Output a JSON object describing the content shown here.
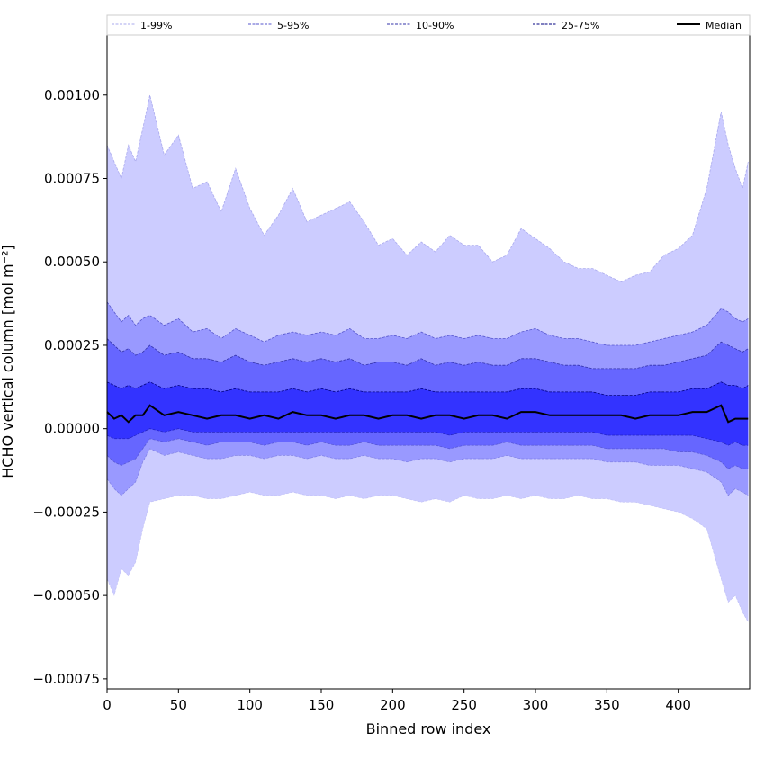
{
  "chart_data": {
    "type": "area",
    "title": "",
    "xlabel": "Binned row index",
    "ylabel": "HCHO vertical column [mol m⁻²]",
    "xlim": [
      0,
      450
    ],
    "ylim": [
      -0.00078,
      0.00118
    ],
    "x_ticks": [
      0,
      50,
      100,
      150,
      200,
      250,
      300,
      350,
      400
    ],
    "x_tick_labels": [
      "0",
      "50",
      "100",
      "150",
      "200",
      "250",
      "300",
      "350",
      "400"
    ],
    "y_ticks": [
      0.001,
      0.00075,
      0.0005,
      0.00025,
      0.0,
      -0.00025,
      -0.0005,
      -0.00075
    ],
    "y_tick_labels": [
      "0.00100",
      "0.00075",
      "0.00050",
      "0.00025",
      "0.00000",
      "−0.00025",
      "−0.00050",
      "−0.00075"
    ],
    "legend_position": "top, spanning full width",
    "x": [
      0,
      5,
      10,
      15,
      20,
      25,
      30,
      40,
      50,
      60,
      70,
      80,
      90,
      100,
      110,
      120,
      130,
      140,
      150,
      160,
      170,
      180,
      190,
      200,
      210,
      220,
      230,
      240,
      250,
      260,
      270,
      280,
      290,
      300,
      310,
      320,
      330,
      340,
      350,
      360,
      370,
      380,
      390,
      400,
      410,
      420,
      430,
      435,
      440,
      445,
      449
    ],
    "bands": [
      {
        "name": "1-99%",
        "fill_color": "#ccccff",
        "line_color": "#aaaaee",
        "lower": [
          -0.00045,
          -0.0005,
          -0.00042,
          -0.00044,
          -0.0004,
          -0.0003,
          -0.00022,
          -0.00021,
          -0.0002,
          -0.0002,
          -0.00021,
          -0.00021,
          -0.0002,
          -0.00019,
          -0.0002,
          -0.0002,
          -0.00019,
          -0.0002,
          -0.0002,
          -0.00021,
          -0.0002,
          -0.00021,
          -0.0002,
          -0.0002,
          -0.00021,
          -0.00022,
          -0.00021,
          -0.00022,
          -0.0002,
          -0.00021,
          -0.00021,
          -0.0002,
          -0.00021,
          -0.0002,
          -0.00021,
          -0.00021,
          -0.0002,
          -0.00021,
          -0.00021,
          -0.00022,
          -0.00022,
          -0.00023,
          -0.00024,
          -0.00025,
          -0.00027,
          -0.0003,
          -0.00045,
          -0.00052,
          -0.0005,
          -0.00055,
          -0.00058
        ],
        "upper": [
          0.00085,
          0.0008,
          0.00075,
          0.00085,
          0.0008,
          0.0009,
          0.001,
          0.00082,
          0.00088,
          0.00072,
          0.00074,
          0.00065,
          0.00078,
          0.00066,
          0.00058,
          0.00064,
          0.00072,
          0.00062,
          0.00064,
          0.00066,
          0.00068,
          0.00062,
          0.00055,
          0.00057,
          0.00052,
          0.00056,
          0.00053,
          0.00058,
          0.00055,
          0.00055,
          0.0005,
          0.00052,
          0.0006,
          0.00057,
          0.00054,
          0.0005,
          0.00048,
          0.00048,
          0.00046,
          0.00044,
          0.00046,
          0.00047,
          0.00052,
          0.00054,
          0.00058,
          0.00072,
          0.00095,
          0.00085,
          0.00078,
          0.00072,
          0.0008
        ]
      },
      {
        "name": "5-95%",
        "fill_color": "#9999ff",
        "line_color": "#5555cc",
        "lower": [
          -0.00015,
          -0.00018,
          -0.0002,
          -0.00018,
          -0.00016,
          -0.0001,
          -6e-05,
          -8e-05,
          -7e-05,
          -8e-05,
          -9e-05,
          -9e-05,
          -8e-05,
          -8e-05,
          -9e-05,
          -8e-05,
          -8e-05,
          -9e-05,
          -8e-05,
          -9e-05,
          -9e-05,
          -8e-05,
          -9e-05,
          -9e-05,
          -0.0001,
          -9e-05,
          -9e-05,
          -0.0001,
          -9e-05,
          -9e-05,
          -9e-05,
          -8e-05,
          -9e-05,
          -9e-05,
          -9e-05,
          -9e-05,
          -9e-05,
          -9e-05,
          -0.0001,
          -0.0001,
          -0.0001,
          -0.00011,
          -0.00011,
          -0.00011,
          -0.00012,
          -0.00013,
          -0.00016,
          -0.0002,
          -0.00018,
          -0.00019,
          -0.0002
        ],
        "upper": [
          0.00038,
          0.00035,
          0.00032,
          0.00034,
          0.00031,
          0.00033,
          0.00034,
          0.00031,
          0.00033,
          0.00029,
          0.0003,
          0.00027,
          0.0003,
          0.00028,
          0.00026,
          0.00028,
          0.00029,
          0.00028,
          0.00029,
          0.00028,
          0.0003,
          0.00027,
          0.00027,
          0.00028,
          0.00027,
          0.00029,
          0.00027,
          0.00028,
          0.00027,
          0.00028,
          0.00027,
          0.00027,
          0.00029,
          0.0003,
          0.00028,
          0.00027,
          0.00027,
          0.00026,
          0.00025,
          0.00025,
          0.00025,
          0.00026,
          0.00027,
          0.00028,
          0.00029,
          0.00031,
          0.00036,
          0.00035,
          0.00033,
          0.00032,
          0.00033
        ]
      },
      {
        "name": "10-90%",
        "fill_color": "#6666ff",
        "line_color": "#3333aa",
        "lower": [
          -8e-05,
          -0.0001,
          -0.00011,
          -0.0001,
          -9e-05,
          -6e-05,
          -3e-05,
          -4e-05,
          -3e-05,
          -4e-05,
          -5e-05,
          -4e-05,
          -4e-05,
          -4e-05,
          -5e-05,
          -4e-05,
          -4e-05,
          -5e-05,
          -4e-05,
          -5e-05,
          -5e-05,
          -4e-05,
          -5e-05,
          -5e-05,
          -5e-05,
          -5e-05,
          -5e-05,
          -6e-05,
          -5e-05,
          -5e-05,
          -5e-05,
          -4e-05,
          -5e-05,
          -5e-05,
          -5e-05,
          -5e-05,
          -5e-05,
          -5e-05,
          -6e-05,
          -6e-05,
          -6e-05,
          -6e-05,
          -6e-05,
          -7e-05,
          -7e-05,
          -8e-05,
          -0.0001,
          -0.00012,
          -0.00011,
          -0.00012,
          -0.00012
        ],
        "upper": [
          0.00027,
          0.00025,
          0.00023,
          0.00024,
          0.00022,
          0.00023,
          0.00025,
          0.00022,
          0.00023,
          0.00021,
          0.00021,
          0.0002,
          0.00022,
          0.0002,
          0.00019,
          0.0002,
          0.00021,
          0.0002,
          0.00021,
          0.0002,
          0.00021,
          0.00019,
          0.0002,
          0.0002,
          0.00019,
          0.00021,
          0.00019,
          0.0002,
          0.00019,
          0.0002,
          0.00019,
          0.00019,
          0.00021,
          0.00021,
          0.0002,
          0.00019,
          0.00019,
          0.00018,
          0.00018,
          0.00018,
          0.00018,
          0.00019,
          0.00019,
          0.0002,
          0.00021,
          0.00022,
          0.00026,
          0.00025,
          0.00024,
          0.00023,
          0.00024
        ]
      },
      {
        "name": "25-75%",
        "fill_color": "#3333ff",
        "line_color": "#000080",
        "lower": [
          -2e-05,
          -3e-05,
          -3e-05,
          -3e-05,
          -2e-05,
          -1e-05,
          0.0,
          -1e-05,
          0.0,
          -1e-05,
          -1e-05,
          -1e-05,
          -1e-05,
          -1e-05,
          -1e-05,
          -1e-05,
          -1e-05,
          -1e-05,
          -1e-05,
          -1e-05,
          -1e-05,
          -1e-05,
          -1e-05,
          -1e-05,
          -1e-05,
          -1e-05,
          -1e-05,
          -2e-05,
          -1e-05,
          -1e-05,
          -1e-05,
          -1e-05,
          -1e-05,
          -1e-05,
          -1e-05,
          -1e-05,
          -1e-05,
          -1e-05,
          -2e-05,
          -2e-05,
          -2e-05,
          -2e-05,
          -2e-05,
          -2e-05,
          -2e-05,
          -3e-05,
          -4e-05,
          -5e-05,
          -4e-05,
          -5e-05,
          -5e-05
        ],
        "upper": [
          0.00014,
          0.00013,
          0.00012,
          0.00013,
          0.00012,
          0.00013,
          0.00014,
          0.00012,
          0.00013,
          0.00012,
          0.00012,
          0.00011,
          0.00012,
          0.00011,
          0.00011,
          0.00011,
          0.00012,
          0.00011,
          0.00012,
          0.00011,
          0.00012,
          0.00011,
          0.00011,
          0.00011,
          0.00011,
          0.00012,
          0.00011,
          0.00011,
          0.00011,
          0.00011,
          0.00011,
          0.00011,
          0.00012,
          0.00012,
          0.00011,
          0.00011,
          0.00011,
          0.00011,
          0.0001,
          0.0001,
          0.0001,
          0.00011,
          0.00011,
          0.00011,
          0.00012,
          0.00012,
          0.00014,
          0.00013,
          0.00013,
          0.00012,
          0.00013
        ]
      }
    ],
    "median": {
      "name": "Median",
      "color": "#000000",
      "values": [
        5e-05,
        3e-05,
        4e-05,
        2e-05,
        4e-05,
        4e-05,
        7e-05,
        4e-05,
        5e-05,
        4e-05,
        3e-05,
        4e-05,
        4e-05,
        3e-05,
        4e-05,
        3e-05,
        5e-05,
        4e-05,
        4e-05,
        3e-05,
        4e-05,
        4e-05,
        3e-05,
        4e-05,
        4e-05,
        3e-05,
        4e-05,
        4e-05,
        3e-05,
        4e-05,
        4e-05,
        3e-05,
        5e-05,
        5e-05,
        4e-05,
        4e-05,
        4e-05,
        4e-05,
        4e-05,
        4e-05,
        3e-05,
        4e-05,
        4e-05,
        4e-05,
        5e-05,
        5e-05,
        7e-05,
        2e-05,
        3e-05,
        3e-05,
        3e-05
      ]
    }
  }
}
